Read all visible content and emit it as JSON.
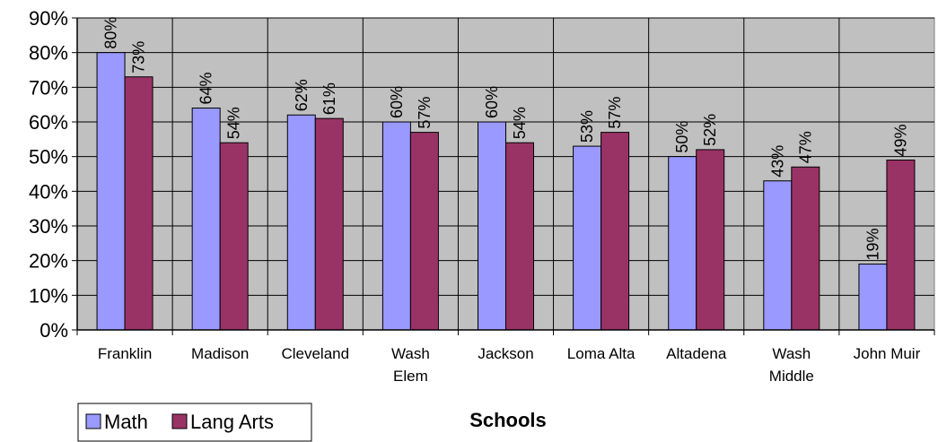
{
  "chart_data": {
    "type": "bar",
    "categories": [
      [
        "Franklin"
      ],
      [
        "Madison"
      ],
      [
        "Cleveland"
      ],
      [
        "Wash",
        "Elem"
      ],
      [
        "Jackson"
      ],
      [
        "Loma Alta"
      ],
      [
        "Altadena"
      ],
      [
        "Wash",
        "Middle"
      ],
      [
        "John Muir"
      ]
    ],
    "series": [
      {
        "name": "Math",
        "color": "#9999ff",
        "values": [
          80,
          64,
          62,
          60,
          60,
          53,
          50,
          43,
          19
        ]
      },
      {
        "name": "Lang Arts",
        "color": "#993366",
        "values": [
          73,
          54,
          61,
          57,
          54,
          57,
          52,
          47,
          49
        ]
      }
    ],
    "ytick_labels": [
      "0%",
      "10%",
      "20%",
      "30%",
      "40%",
      "50%",
      "60%",
      "70%",
      "80%",
      "90%"
    ],
    "ylim": [
      0,
      90
    ],
    "ystep": 10,
    "xlabel": "Schools",
    "ylabel": "",
    "plot_background": "#c0c0c0",
    "grid": true,
    "legend_position": "bottom-left",
    "data_label_suffix": "%"
  }
}
